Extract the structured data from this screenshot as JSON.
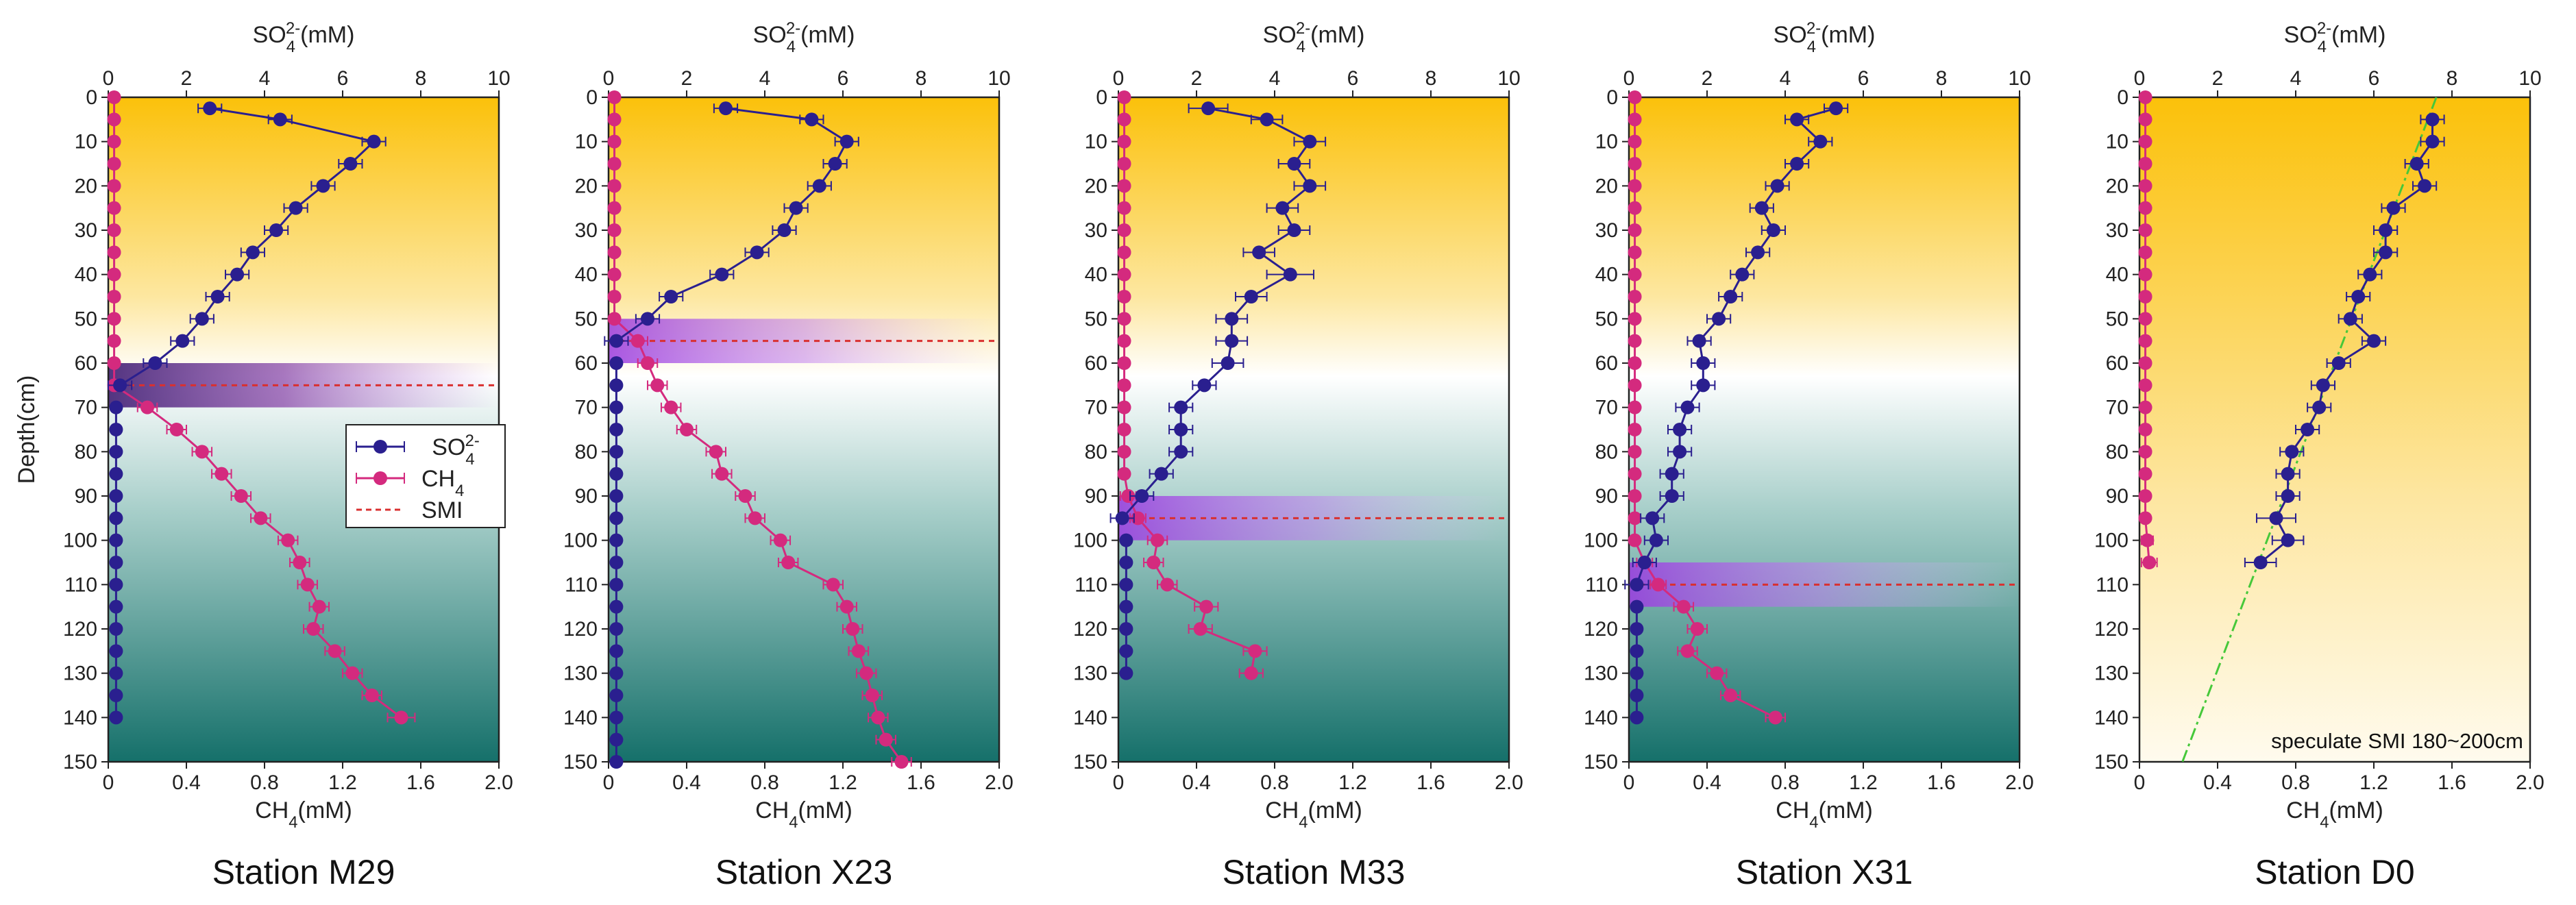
{
  "chart_data": {
    "type": "line",
    "y_label": "Depth(cm)",
    "y_ticks": [
      "0",
      "10",
      "20",
      "30",
      "40",
      "50",
      "60",
      "70",
      "80",
      "90",
      "100",
      "110",
      "120",
      "130",
      "140",
      "150"
    ],
    "top_axis_label": "SO₄²⁻(mM)",
    "top_axis_ticks": [
      "0",
      "2",
      "4",
      "6",
      "8",
      "10"
    ],
    "top_axis_range": [
      0,
      10
    ],
    "bottom_axis_label": "CH₄(mM)",
    "bottom_axis_ticks": [
      "0",
      "0.4",
      "0.8",
      "1.2",
      "1.6",
      "2.0"
    ],
    "bottom_axis_range": [
      0,
      2
    ],
    "ylim": [
      0,
      150
    ],
    "legend": {
      "location": "middle-left of first panel",
      "so4": "SO₄²⁻",
      "ch4": "CH₄",
      "smi": "SMI"
    },
    "colors": {
      "so4": "#2a1f8f",
      "ch4": "#d42a7e",
      "smi": "#d93030",
      "smi_band": "#a040e0",
      "sediment_top": "#fbc10a",
      "sediment_bottom": "#15706a",
      "speculate_line": "#46c83a"
    },
    "stations": [
      {
        "name": "Station M29",
        "background": "full",
        "smi_depth": 65,
        "smi_band": [
          60,
          70
        ],
        "smi_band_color": "#5a2a8a",
        "so4": {
          "depth": [
            2.5,
            5,
            10,
            15,
            20,
            25,
            30,
            35,
            40,
            45,
            50,
            55,
            60,
            65
          ],
          "value": [
            2.6,
            4.4,
            6.8,
            6.2,
            5.5,
            4.8,
            4.3,
            3.7,
            3.3,
            2.8,
            2.4,
            1.9,
            1.2,
            0.3
          ],
          "err": [
            0.3,
            0.3,
            0.3,
            0.3,
            0.3,
            0.3,
            0.3,
            0.3,
            0.3,
            0.3,
            0.3,
            0.3,
            0.3,
            0.3
          ]
        },
        "so4_low": {
          "depth": [
            70,
            75,
            80,
            85,
            90,
            95,
            100,
            105,
            110,
            115,
            120,
            125,
            130,
            135,
            140
          ],
          "value": [
            0.2,
            0.2,
            0.2,
            0.2,
            0.2,
            0.2,
            0.2,
            0.2,
            0.2,
            0.2,
            0.2,
            0.2,
            0.2,
            0.2,
            0.2
          ]
        },
        "ch4": {
          "depth": [
            0,
            5,
            10,
            15,
            20,
            25,
            30,
            35,
            40,
            45,
            50,
            55,
            60,
            65,
            70,
            75,
            80,
            85,
            90,
            95,
            100,
            105,
            110,
            115,
            120,
            125,
            130,
            135,
            140
          ],
          "value": [
            0.03,
            0.03,
            0.03,
            0.03,
            0.03,
            0.03,
            0.03,
            0.03,
            0.03,
            0.03,
            0.03,
            0.03,
            0.03,
            0.03,
            0.2,
            0.35,
            0.48,
            0.58,
            0.68,
            0.78,
            0.92,
            0.98,
            1.02,
            1.08,
            1.05,
            1.16,
            1.25,
            1.35,
            1.5
          ],
          "err": [
            0,
            0,
            0,
            0,
            0,
            0,
            0,
            0,
            0,
            0,
            0,
            0,
            0,
            0,
            0.05,
            0.05,
            0.05,
            0.05,
            0.05,
            0.05,
            0.05,
            0.05,
            0.05,
            0.05,
            0.05,
            0.05,
            0.05,
            0.05,
            0.07
          ]
        }
      },
      {
        "name": "Station X23",
        "background": "full",
        "smi_depth": 55,
        "smi_band": [
          50,
          60
        ],
        "smi_band_color": "#a040e0",
        "so4": {
          "depth": [
            2.5,
            5,
            10,
            15,
            20,
            25,
            30,
            35,
            40,
            45,
            50,
            55
          ],
          "value": [
            3.0,
            5.2,
            6.1,
            5.8,
            5.4,
            4.8,
            4.5,
            3.8,
            2.9,
            1.6,
            1.0,
            0.2
          ],
          "err": [
            0.3,
            0.3,
            0.3,
            0.3,
            0.3,
            0.3,
            0.3,
            0.3,
            0.3,
            0.3,
            0.3,
            0.3
          ]
        },
        "so4_low": {
          "depth": [
            60,
            65,
            70,
            75,
            80,
            85,
            90,
            95,
            100,
            105,
            110,
            115,
            120,
            125,
            130,
            135,
            140,
            145,
            150
          ],
          "value": [
            0.2,
            0.2,
            0.2,
            0.2,
            0.2,
            0.2,
            0.2,
            0.2,
            0.2,
            0.2,
            0.2,
            0.2,
            0.2,
            0.2,
            0.2,
            0.2,
            0.2,
            0.2,
            0.2
          ]
        },
        "ch4": {
          "depth": [
            0,
            5,
            10,
            15,
            20,
            25,
            30,
            35,
            40,
            45,
            50,
            55,
            60,
            65,
            70,
            75,
            80,
            85,
            90,
            95,
            100,
            105,
            110,
            115,
            120,
            125,
            130,
            135,
            140,
            145,
            150
          ],
          "value": [
            0.03,
            0.03,
            0.03,
            0.03,
            0.03,
            0.03,
            0.03,
            0.03,
            0.03,
            0.03,
            0.03,
            0.15,
            0.2,
            0.25,
            0.32,
            0.4,
            0.55,
            0.58,
            0.7,
            0.75,
            0.88,
            0.92,
            1.15,
            1.22,
            1.25,
            1.28,
            1.32,
            1.35,
            1.38,
            1.42,
            1.5
          ],
          "err": [
            0,
            0,
            0,
            0,
            0,
            0,
            0,
            0,
            0,
            0,
            0,
            0.05,
            0.05,
            0.05,
            0.05,
            0.05,
            0.05,
            0.05,
            0.05,
            0.05,
            0.05,
            0.05,
            0.05,
            0.05,
            0.05,
            0.05,
            0.05,
            0.05,
            0.05,
            0.05,
            0.05
          ]
        }
      },
      {
        "name": "Station M33",
        "background": "full",
        "smi_depth": 95,
        "smi_band": [
          90,
          100
        ],
        "smi_band_color": "#a040e0",
        "so4": {
          "depth": [
            2.5,
            5,
            10,
            15,
            20,
            25,
            30,
            35,
            40,
            45,
            50,
            55,
            60,
            65,
            70,
            75,
            80,
            85,
            90,
            95
          ],
          "value": [
            2.3,
            3.8,
            4.9,
            4.5,
            4.9,
            4.2,
            4.5,
            3.6,
            4.4,
            3.4,
            2.9,
            2.9,
            2.8,
            2.2,
            1.6,
            1.6,
            1.6,
            1.1,
            0.6,
            0.1
          ],
          "err": [
            0.5,
            0.4,
            0.4,
            0.4,
            0.4,
            0.4,
            0.4,
            0.4,
            0.6,
            0.4,
            0.4,
            0.4,
            0.4,
            0.3,
            0.3,
            0.3,
            0.3,
            0.3,
            0.3,
            0.3
          ]
        },
        "so4_low": {
          "depth": [
            100,
            105,
            110,
            115,
            120,
            125,
            130
          ],
          "value": [
            0.2,
            0.2,
            0.2,
            0.2,
            0.2,
            0.2,
            0.2
          ]
        },
        "ch4": {
          "depth": [
            0,
            5,
            10,
            15,
            20,
            25,
            30,
            35,
            40,
            45,
            50,
            55,
            60,
            65,
            70,
            75,
            80,
            85,
            90,
            95,
            100,
            105,
            110,
            115,
            120,
            125,
            130
          ],
          "value": [
            0.03,
            0.03,
            0.03,
            0.03,
            0.03,
            0.03,
            0.03,
            0.03,
            0.03,
            0.03,
            0.03,
            0.03,
            0.03,
            0.03,
            0.03,
            0.03,
            0.03,
            0.03,
            0.05,
            0.1,
            0.2,
            0.18,
            0.25,
            0.45,
            0.42,
            0.7,
            0.68
          ],
          "err": [
            0,
            0,
            0,
            0,
            0,
            0,
            0,
            0,
            0,
            0,
            0,
            0,
            0,
            0,
            0,
            0,
            0,
            0,
            0.04,
            0.04,
            0.05,
            0.05,
            0.05,
            0.06,
            0.06,
            0.06,
            0.06
          ]
        }
      },
      {
        "name": "Station X31",
        "background": "full",
        "smi_depth": 110,
        "smi_band": [
          105,
          115
        ],
        "smi_band_color": "#a040e0",
        "so4": {
          "depth": [
            2.5,
            5,
            10,
            15,
            20,
            25,
            30,
            35,
            40,
            45,
            50,
            55,
            60,
            65,
            70,
            75,
            80,
            85,
            90,
            95,
            100,
            105,
            110
          ],
          "value": [
            5.3,
            4.3,
            4.9,
            4.3,
            3.8,
            3.4,
            3.7,
            3.3,
            2.9,
            2.6,
            2.3,
            1.8,
            1.9,
            1.9,
            1.5,
            1.3,
            1.3,
            1.1,
            1.1,
            0.6,
            0.7,
            0.4,
            0.2
          ],
          "err": [
            0.3,
            0.3,
            0.3,
            0.3,
            0.3,
            0.3,
            0.3,
            0.3,
            0.3,
            0.3,
            0.3,
            0.3,
            0.3,
            0.3,
            0.3,
            0.3,
            0.3,
            0.3,
            0.3,
            0.3,
            0.3,
            0.3,
            0.3
          ]
        },
        "so4_low": {
          "depth": [
            115,
            120,
            125,
            130,
            135,
            140
          ],
          "value": [
            0.2,
            0.2,
            0.2,
            0.2,
            0.2,
            0.2
          ]
        },
        "ch4": {
          "depth": [
            0,
            5,
            10,
            15,
            20,
            25,
            30,
            35,
            40,
            45,
            50,
            55,
            60,
            65,
            70,
            75,
            80,
            85,
            90,
            95,
            100,
            105,
            110,
            115,
            120,
            125,
            130,
            135,
            140
          ],
          "value": [
            0.03,
            0.03,
            0.03,
            0.03,
            0.03,
            0.03,
            0.03,
            0.03,
            0.03,
            0.03,
            0.03,
            0.03,
            0.03,
            0.03,
            0.03,
            0.03,
            0.03,
            0.03,
            0.03,
            0.03,
            0.03,
            0.08,
            0.15,
            0.28,
            0.35,
            0.3,
            0.45,
            0.52,
            0.75
          ],
          "err": [
            0,
            0,
            0,
            0,
            0,
            0,
            0,
            0,
            0,
            0,
            0,
            0,
            0,
            0,
            0,
            0,
            0,
            0,
            0,
            0,
            0,
            0.04,
            0.04,
            0.05,
            0.05,
            0.05,
            0.05,
            0.05,
            0.05
          ]
        }
      },
      {
        "name": "Station D0",
        "background": "yellow",
        "smi_depth": null,
        "smi_band": null,
        "note": "speculate  SMI 180~200cm",
        "so4": {
          "depth": [
            5,
            10,
            15,
            20,
            25,
            30,
            35,
            40,
            45,
            50,
            55,
            60,
            65,
            70,
            75,
            80,
            85,
            90,
            95,
            100,
            105
          ],
          "value": [
            7.5,
            7.5,
            7.1,
            7.3,
            6.5,
            6.3,
            6.3,
            5.9,
            5.6,
            5.4,
            6.0,
            5.1,
            4.7,
            4.6,
            4.3,
            3.9,
            3.8,
            3.8,
            3.5,
            3.8,
            3.1
          ],
          "err": [
            0.3,
            0.3,
            0.3,
            0.3,
            0.3,
            0.3,
            0.3,
            0.3,
            0.3,
            0.3,
            0.3,
            0.3,
            0.3,
            0.3,
            0.3,
            0.3,
            0.3,
            0.3,
            0.5,
            0.4,
            0.4
          ]
        },
        "ch4": {
          "depth": [
            0,
            5,
            10,
            15,
            20,
            25,
            30,
            35,
            40,
            45,
            50,
            55,
            60,
            65,
            70,
            75,
            80,
            85,
            90,
            95,
            100,
            105
          ],
          "value": [
            0.03,
            0.03,
            0.03,
            0.03,
            0.03,
            0.03,
            0.03,
            0.03,
            0.03,
            0.03,
            0.03,
            0.03,
            0.03,
            0.03,
            0.03,
            0.03,
            0.03,
            0.03,
            0.03,
            0.03,
            0.04,
            0.05
          ],
          "err": [
            0,
            0,
            0,
            0,
            0,
            0,
            0,
            0,
            0,
            0,
            0,
            0,
            0,
            0,
            0,
            0,
            0,
            0,
            0,
            0,
            0.03,
            0.04
          ]
        },
        "speculate_line": {
          "so4": [
            7.6,
            1.1
          ],
          "depth": [
            0,
            150
          ]
        }
      }
    ]
  }
}
